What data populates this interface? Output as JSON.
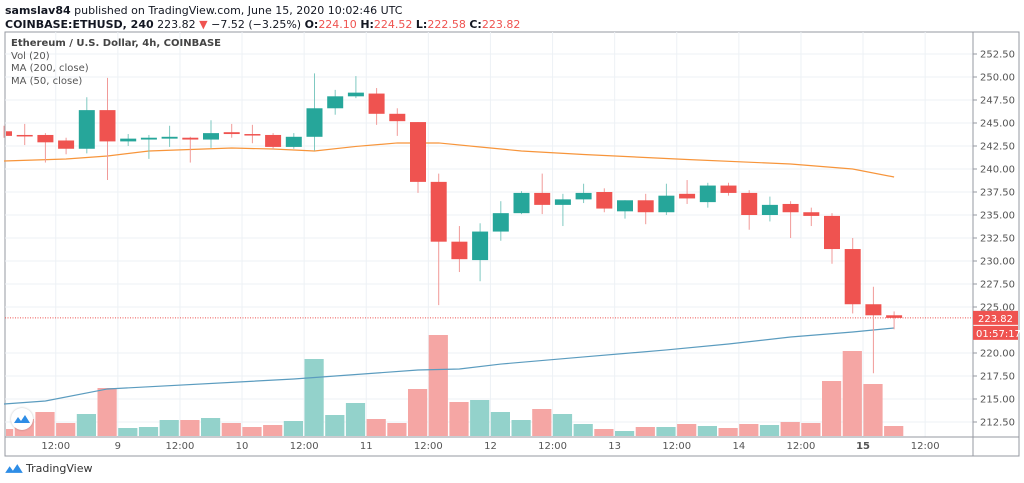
{
  "header": {
    "author": "samslav84",
    "published_text": "published on TradingView.com, June 15, 2020 10:02:46 UTC",
    "symbol": "COINBASE:ETHUSD, 240",
    "last_price": "223.82",
    "change": "−7.52 (−3.25%)",
    "open_label": "O:",
    "open": "224.10",
    "high_label": "H:",
    "high": "224.52",
    "low_label": "L:",
    "low": "222.58",
    "close_label": "C:",
    "close": "223.82"
  },
  "legend": {
    "title": "Ethereum / U.S. Dollar, 4h, COINBASE",
    "indicators": [
      "Vol (20)",
      "MA (200, close)",
      "MA (50, close)"
    ]
  },
  "price_tag": {
    "price": "223.82",
    "countdown": "01:57:17"
  },
  "brand": {
    "name": "TradingView"
  },
  "colors": {
    "up": "#26a69a",
    "down": "#ef5350",
    "vol_up": "#93d2cb",
    "vol_down": "#f5a6a4",
    "ma50": "#f7953b",
    "ma200": "#5b9cbf",
    "grid": "#edf1f5"
  },
  "chart_data": {
    "type": "candlestick",
    "y_axis": {
      "range": [
        210.5,
        255
      ],
      "ticks": [
        "252.50",
        "250.00",
        "247.50",
        "245.00",
        "242.50",
        "240.00",
        "237.50",
        "235.00",
        "232.50",
        "230.00",
        "227.50",
        "225.00",
        "220.00",
        "217.50",
        "215.00",
        "212.50"
      ]
    },
    "x_axis": {
      "ticks": [
        "12:00",
        "9",
        "12:00",
        "10",
        "12:00",
        "11",
        "12:00",
        "12",
        "12:00",
        "13",
        "12:00",
        "14",
        "12:00",
        "15",
        "12:00"
      ],
      "bold_tick": "15"
    },
    "candles": [
      [
        244.1,
        244.7,
        243.4,
        243.6
      ],
      [
        243.7,
        244.9,
        242.6,
        243.6
      ],
      [
        243.7,
        243.9,
        240.7,
        242.9
      ],
      [
        243.1,
        243.4,
        241.6,
        242.2
      ],
      [
        242.2,
        247.8,
        241.7,
        246.4
      ],
      [
        246.4,
        249.9,
        238.8,
        243.0
      ],
      [
        243.0,
        243.8,
        242.5,
        243.3
      ],
      [
        243.2,
        243.7,
        241.1,
        243.4
      ],
      [
        243.3,
        244.7,
        242.4,
        243.5
      ],
      [
        243.4,
        243.5,
        240.7,
        243.2
      ],
      [
        243.2,
        245.3,
        242.3,
        243.9
      ],
      [
        244.0,
        244.9,
        243.4,
        243.8
      ],
      [
        243.8,
        244.8,
        242.8,
        243.7
      ],
      [
        243.7,
        243.9,
        242.1,
        242.4
      ],
      [
        242.4,
        243.9,
        242.2,
        243.5
      ],
      [
        243.5,
        250.4,
        242.0,
        246.6
      ],
      [
        246.6,
        248.6,
        245.9,
        247.9
      ],
      [
        247.9,
        250.1,
        247.7,
        248.3
      ],
      [
        248.2,
        248.8,
        244.8,
        246.0
      ],
      [
        246.0,
        246.6,
        243.6,
        245.2
      ],
      [
        245.1,
        245.1,
        237.4,
        238.6
      ],
      [
        238.6,
        239.5,
        225.2,
        232.1
      ],
      [
        232.1,
        233.8,
        228.8,
        230.2
      ],
      [
        230.1,
        234.1,
        227.8,
        233.2
      ],
      [
        233.2,
        236.5,
        232.2,
        235.2
      ],
      [
        235.2,
        237.6,
        235.1,
        237.4
      ],
      [
        237.4,
        239.5,
        235.1,
        236.1
      ],
      [
        236.1,
        237.3,
        233.8,
        236.7
      ],
      [
        236.7,
        238.4,
        236.3,
        237.4
      ],
      [
        237.5,
        237.9,
        235.3,
        235.7
      ],
      [
        235.4,
        236.6,
        234.6,
        236.6
      ],
      [
        236.6,
        237.3,
        234.0,
        235.3
      ],
      [
        235.3,
        238.4,
        235.0,
        237.1
      ],
      [
        237.3,
        238.8,
        236.2,
        236.8
      ],
      [
        236.4,
        238.5,
        235.8,
        238.2
      ],
      [
        238.2,
        238.5,
        237.1,
        237.4
      ],
      [
        237.4,
        237.7,
        233.4,
        235.0
      ],
      [
        235.0,
        237.0,
        234.3,
        236.1
      ],
      [
        236.2,
        236.5,
        232.5,
        235.3
      ],
      [
        235.3,
        235.8,
        233.8,
        234.9
      ],
      [
        234.9,
        235.2,
        229.7,
        231.3
      ],
      [
        231.3,
        232.5,
        224.3,
        225.3
      ],
      [
        225.3,
        227.2,
        217.8,
        224.1
      ],
      [
        224.1,
        224.52,
        222.58,
        223.82
      ]
    ],
    "candle_fields": [
      "open",
      "high",
      "low",
      "close"
    ],
    "volume_relative": [
      7,
      17,
      24,
      13,
      22,
      48,
      8,
      9,
      16,
      16,
      18,
      13,
      9,
      11,
      15,
      77,
      21,
      33,
      17,
      13,
      47,
      101,
      34,
      36,
      24,
      16,
      27,
      22,
      12,
      7,
      5,
      9,
      9,
      12,
      10,
      8,
      12,
      11,
      14,
      13,
      55,
      85,
      52,
      10
    ],
    "ma50": [
      [
        0,
        240.87
      ],
      [
        3,
        241.09
      ],
      [
        5,
        241.41
      ],
      [
        7,
        241.96
      ],
      [
        11,
        242.28
      ],
      [
        13,
        242.17
      ],
      [
        15,
        241.96
      ],
      [
        17,
        242.45
      ],
      [
        19,
        242.83
      ],
      [
        21,
        242.83
      ],
      [
        23,
        242.39
      ],
      [
        25,
        241.96
      ],
      [
        28,
        241.58
      ],
      [
        33,
        241.03
      ],
      [
        38,
        240.54
      ],
      [
        41,
        240.0
      ],
      [
        43,
        239.13
      ]
    ],
    "ma200": [
      [
        0,
        214.46
      ],
      [
        2,
        214.78
      ],
      [
        5,
        216.09
      ],
      [
        14,
        217.17
      ],
      [
        20,
        218.15
      ],
      [
        22,
        218.26
      ],
      [
        24,
        218.8
      ],
      [
        28,
        219.57
      ],
      [
        32,
        220.33
      ],
      [
        35,
        220.98
      ],
      [
        38,
        221.74
      ],
      [
        41,
        222.28
      ],
      [
        43,
        222.72
      ]
    ],
    "last_price": 223.82
  }
}
